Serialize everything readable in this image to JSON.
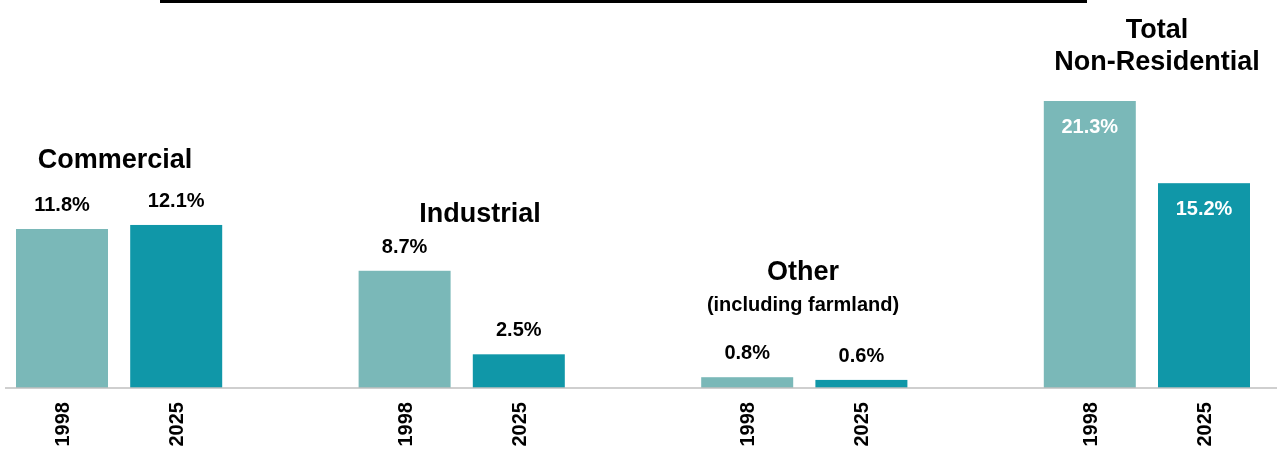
{
  "chart_data": {
    "type": "bar",
    "categories": [
      "1998",
      "2025",
      null,
      "1998",
      "2025",
      null,
      "1998",
      "2025",
      null,
      "1998",
      "2025"
    ],
    "values": [
      11.8,
      12.1,
      null,
      8.7,
      2.5,
      null,
      0.8,
      0.6,
      null,
      21.3,
      15.2
    ],
    "colors": [
      "#7ab8b8",
      "#1097a8",
      null,
      "#7ab8b8",
      "#1097a8",
      null,
      "#7ab8b8",
      "#1097a8",
      null,
      "#7ab8b8",
      "#1097a8"
    ],
    "value_labels": [
      "11.8%",
      "12.1%",
      null,
      "8.7%",
      "2.5%",
      null,
      "0.8%",
      "0.6%",
      null,
      "21.3%",
      "15.2%"
    ],
    "annotations": [
      "Commercial",
      "Industrial",
      "Other",
      "(including farmland)",
      "Total\nNon-Residential"
    ]
  }
}
